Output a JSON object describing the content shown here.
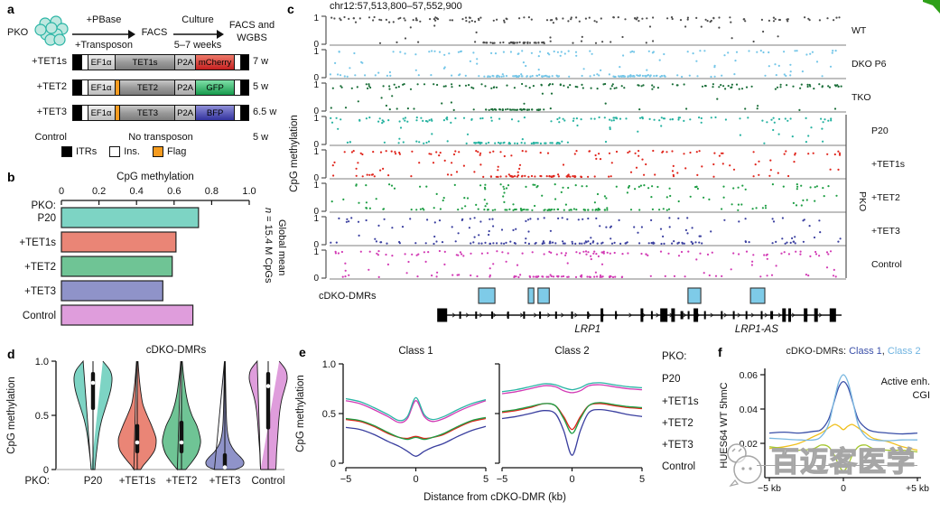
{
  "panels": {
    "a": "a",
    "b": "b",
    "c": "c",
    "d": "d",
    "e": "e",
    "f": "f"
  },
  "corner_mark_color": "#2ea018",
  "watermark": {
    "text": "百迈客医学"
  },
  "panel_a": {
    "flow": {
      "pko": "PKO",
      "arrow1_top": "+PBase",
      "arrow1_bottom": "+Transposon",
      "facs": "FACS",
      "arrow2_top": "Culture",
      "arrow2_bottom": "5–7 weeks",
      "result_line1": "FACS and",
      "result_line2": "WGBS"
    },
    "cell_color": "#bfe8e0",
    "cell_stroke": "#2ab5a5",
    "constructs": [
      {
        "name": "+TET1s",
        "promoter": "EF1α",
        "flag": false,
        "gene": "TET1s",
        "p2a": "P2A",
        "reporter": "mCherry",
        "reporter_color": "#c42020",
        "reporter_light": "#ef7a6a",
        "weeks": "7 w"
      },
      {
        "name": "+TET2",
        "promoter": "EF1α",
        "flag": true,
        "gene": "TET2",
        "p2a": "P2A",
        "reporter": "GFP",
        "reporter_color": "#169a4c",
        "reporter_light": "#7fe0a8",
        "weeks": "5 w"
      },
      {
        "name": "+TET3",
        "promoter": "EF1α",
        "flag": true,
        "gene": "TET3",
        "p2a": "P2A",
        "reporter": "BFP",
        "reporter_color": "#33339e",
        "reporter_light": "#8f8fd8",
        "weeks": "6.5 w"
      }
    ],
    "control": {
      "name": "Control",
      "text": "No transposon",
      "weeks": "5 w"
    },
    "legend": [
      {
        "label": "ITRs",
        "color": "#000000"
      },
      {
        "label": "Ins.",
        "color": "#ffffff"
      },
      {
        "label": "Flag",
        "color": "#f59b1f"
      }
    ],
    "flag_color": "#f59b1f"
  },
  "chart_data": [
    {
      "id": "b",
      "type": "bar",
      "title": "CpG methylation",
      "row_prefix": "PKO:",
      "categories": [
        "P20",
        "+TET1s",
        "+TET2",
        "+TET3",
        "Control"
      ],
      "values": [
        0.73,
        0.61,
        0.59,
        0.54,
        0.7
      ],
      "colors": [
        "#7dd4c4",
        "#ea8576",
        "#6fc495",
        "#8f93c9",
        "#df9ddc"
      ],
      "xticks": [
        "0",
        "0.2",
        "0.4",
        "0.6",
        "0.8",
        "1.0"
      ],
      "xlim": [
        0,
        1
      ],
      "right_label_line1": "Global mean",
      "right_label_line2_italic": "n",
      "right_label_line2_rest": " = 15.4 M CpGs"
    },
    {
      "id": "c",
      "type": "scatter-tracks",
      "title": "chr12:57,513,800–57,552,900",
      "ylabel": "CpG methylation",
      "ytick_top": "1",
      "ytick_bottom": "0",
      "group_label": "PKO",
      "tracks": [
        {
          "label": "WT",
          "color": "#4d4d4d",
          "group": false,
          "high": 0.8,
          "low": 0.1,
          "smears": [
            [
              0.3,
              0.42
            ]
          ]
        },
        {
          "label": "DKO P6",
          "color": "#74c6e8",
          "group": false,
          "high": 0.52,
          "low": 0.33,
          "smears": [
            [
              0.28,
              0.45
            ],
            [
              0.55,
              0.66
            ]
          ]
        },
        {
          "label": "TKO",
          "color": "#1a6e38",
          "group": false,
          "high": 0.78,
          "low": 0.12,
          "smears": [
            [
              0.3,
              0.42
            ]
          ]
        },
        {
          "label": "P20",
          "color": "#25b2a0",
          "group": true,
          "high": 0.7,
          "low": 0.2,
          "smears": [
            [
              0.28,
              0.45
            ]
          ]
        },
        {
          "label": "+TET1s",
          "color": "#e0251c",
          "group": true,
          "high": 0.45,
          "low": 0.28,
          "smears": [
            [
              0.3,
              0.52
            ]
          ]
        },
        {
          "label": "+TET2",
          "color": "#1e9e44",
          "group": true,
          "high": 0.45,
          "low": 0.28,
          "smears": [
            [
              0.3,
              0.55
            ]
          ]
        },
        {
          "label": "+TET3",
          "color": "#3a3f9f",
          "group": true,
          "high": 0.3,
          "low": 0.4,
          "smears": [
            [
              0.3,
              0.72
            ]
          ]
        },
        {
          "label": "Control",
          "color": "#d23ab4",
          "group": true,
          "high": 0.68,
          "low": 0.2,
          "smears": [
            [
              0.35,
              0.58
            ]
          ]
        }
      ],
      "dmr_label": "cDKO-DMRs",
      "dmr_text_color": "#54b8e0",
      "dmr_fill": "#7ecbe8",
      "dmr_boxes": [
        [
          0.291,
          0.323
        ],
        [
          0.388,
          0.399
        ],
        [
          0.407,
          0.429
        ],
        [
          0.7,
          0.725
        ],
        [
          0.822,
          0.85
        ]
      ],
      "gene_span": [
        0.22,
        1.0
      ],
      "gene_labels": [
        {
          "name": "LRP1",
          "fx": 0.504
        },
        {
          "name": "LRP1-AS",
          "fx": 0.834
        }
      ],
      "exons": [
        {
          "x": 0,
          "w": 11,
          "h": 15
        },
        {
          "x": 0.045,
          "w": 2,
          "h": 8
        },
        {
          "x": 0.085,
          "w": 2,
          "h": 8
        },
        {
          "x": 0.125,
          "w": 2,
          "h": 8
        },
        {
          "x": 0.165,
          "w": 2,
          "h": 8
        },
        {
          "x": 0.205,
          "w": 2,
          "h": 8
        },
        {
          "x": 0.245,
          "w": 2,
          "h": 8
        },
        {
          "x": 0.285,
          "w": 2,
          "h": 8
        },
        {
          "x": 0.325,
          "w": 2,
          "h": 8
        },
        {
          "x": 0.365,
          "w": 2,
          "h": 8
        },
        {
          "x": 0.4,
          "w": 3,
          "h": 15
        },
        {
          "x": 0.435,
          "w": 2,
          "h": 9
        },
        {
          "x": 0.5,
          "w": 3,
          "h": 15
        },
        {
          "x": 0.525,
          "w": 2,
          "h": 9
        },
        {
          "x": 0.555,
          "w": 8,
          "h": 15
        },
        {
          "x": 0.578,
          "w": 4,
          "h": 15
        },
        {
          "x": 0.6,
          "w": 3,
          "h": 9
        },
        {
          "x": 0.617,
          "w": 2,
          "h": 9
        },
        {
          "x": 0.635,
          "w": 5,
          "h": 15
        },
        {
          "x": 0.658,
          "w": 2,
          "h": 9
        },
        {
          "x": 0.7,
          "w": 2,
          "h": 9
        },
        {
          "x": 0.73,
          "w": 2,
          "h": 9
        },
        {
          "x": 0.762,
          "w": 2,
          "h": 9
        },
        {
          "x": 0.8,
          "w": 2,
          "h": 9
        },
        {
          "x": 0.825,
          "w": 3,
          "h": 9
        },
        {
          "x": 0.856,
          "w": 4,
          "h": 15
        },
        {
          "x": 0.87,
          "w": 3,
          "h": 15
        },
        {
          "x": 0.91,
          "w": 4,
          "h": 15
        },
        {
          "x": 0.936,
          "w": 4,
          "h": 15
        },
        {
          "x": 0.978,
          "w": 7,
          "h": 15
        }
      ]
    },
    {
      "id": "d",
      "type": "violin",
      "title": "cDKO-DMRs",
      "ylabel": "CpG methylation",
      "yticks": [
        "1.0",
        "0.5",
        "0"
      ],
      "x_prefix": "PKO:",
      "categories": [
        "P20",
        "+TET1s",
        "+TET2",
        "+TET3",
        "Control"
      ],
      "colors": [
        "#7dd4c4",
        "#ea8576",
        "#6fc495",
        "#8f93c9",
        "#df9ddc"
      ],
      "violins": [
        {
          "median": 0.8,
          "q1": 0.55,
          "q3": 0.9,
          "profile": [
            [
              1.0,
              0.52
            ],
            [
              0.92,
              0.88
            ],
            [
              0.85,
              1.0
            ],
            [
              0.75,
              0.95
            ],
            [
              0.65,
              0.8
            ],
            [
              0.55,
              0.62
            ],
            [
              0.45,
              0.45
            ],
            [
              0.35,
              0.33
            ],
            [
              0.25,
              0.25
            ],
            [
              0.15,
              0.18
            ],
            [
              0.05,
              0.12
            ],
            [
              0.0,
              0.1
            ]
          ]
        },
        {
          "median": 0.25,
          "q1": 0.15,
          "q3": 0.42,
          "profile": [
            [
              1.0,
              0.04
            ],
            [
              0.9,
              0.08
            ],
            [
              0.8,
              0.13
            ],
            [
              0.7,
              0.2
            ],
            [
              0.6,
              0.3
            ],
            [
              0.5,
              0.52
            ],
            [
              0.42,
              0.72
            ],
            [
              0.33,
              0.92
            ],
            [
              0.27,
              1.0
            ],
            [
              0.18,
              0.92
            ],
            [
              0.1,
              0.62
            ],
            [
              0.04,
              0.33
            ],
            [
              0.0,
              0.18
            ]
          ]
        },
        {
          "median": 0.25,
          "q1": 0.15,
          "q3": 0.45,
          "profile": [
            [
              1.0,
              0.04
            ],
            [
              0.9,
              0.09
            ],
            [
              0.8,
              0.16
            ],
            [
              0.7,
              0.24
            ],
            [
              0.6,
              0.36
            ],
            [
              0.5,
              0.55
            ],
            [
              0.4,
              0.82
            ],
            [
              0.3,
              0.98
            ],
            [
              0.24,
              1.0
            ],
            [
              0.15,
              0.85
            ],
            [
              0.07,
              0.55
            ],
            [
              0.0,
              0.22
            ]
          ]
        },
        {
          "median": 0.02,
          "q1": 0.005,
          "q3": 0.15,
          "profile": [
            [
              1.0,
              0.02
            ],
            [
              0.85,
              0.035
            ],
            [
              0.7,
              0.05
            ],
            [
              0.55,
              0.07
            ],
            [
              0.42,
              0.1
            ],
            [
              0.32,
              0.16
            ],
            [
              0.24,
              0.28
            ],
            [
              0.17,
              0.52
            ],
            [
              0.11,
              0.85
            ],
            [
              0.07,
              1.0
            ],
            [
              0.03,
              0.92
            ],
            [
              0.0,
              0.55
            ]
          ]
        },
        {
          "median": 0.77,
          "q1": 0.37,
          "q3": 0.9,
          "profile": [
            [
              1.0,
              0.58
            ],
            [
              0.92,
              0.92
            ],
            [
              0.84,
              1.0
            ],
            [
              0.75,
              0.88
            ],
            [
              0.65,
              0.72
            ],
            [
              0.55,
              0.62
            ],
            [
              0.45,
              0.56
            ],
            [
              0.35,
              0.52
            ],
            [
              0.25,
              0.48
            ],
            [
              0.15,
              0.44
            ],
            [
              0.05,
              0.42
            ],
            [
              0.0,
              0.4
            ]
          ]
        }
      ]
    },
    {
      "id": "e",
      "type": "line",
      "subplot_titles": [
        "Class 1",
        "Class 2"
      ],
      "ylabel": "CpG methylation",
      "yticks": [
        "1.0",
        "0.5",
        "0"
      ],
      "ylim": [
        0,
        1
      ],
      "xlabel": "Distance from cDKO-DMR (kb)",
      "xtick_labels": [
        "−5",
        "0",
        "5"
      ],
      "legend_title": "PKO:",
      "x": [
        -5,
        -4,
        -3,
        -2,
        -1.2,
        -0.6,
        0,
        0.6,
        1.2,
        2,
        3,
        4,
        5
      ],
      "series": [
        {
          "name": "Control",
          "color": "#d23ab4",
          "class1": [
            0.63,
            0.6,
            0.54,
            0.47,
            0.41,
            0.45,
            0.63,
            0.47,
            0.42,
            0.45,
            0.52,
            0.58,
            0.63
          ],
          "class2": [
            0.7,
            0.72,
            0.75,
            0.78,
            0.77,
            0.73,
            0.71,
            0.73,
            0.78,
            0.79,
            0.77,
            0.75,
            0.74
          ]
        },
        {
          "name": "P20",
          "color": "#2ab5a5",
          "class1": [
            0.65,
            0.62,
            0.56,
            0.49,
            0.43,
            0.47,
            0.66,
            0.49,
            0.44,
            0.47,
            0.54,
            0.6,
            0.64
          ],
          "class2": [
            0.72,
            0.74,
            0.77,
            0.8,
            0.79,
            0.76,
            0.74,
            0.76,
            0.8,
            0.81,
            0.79,
            0.77,
            0.76
          ]
        },
        {
          "name": "+TET1s",
          "color": "#e0251c",
          "class1": [
            0.44,
            0.42,
            0.37,
            0.3,
            0.26,
            0.25,
            0.27,
            0.25,
            0.26,
            0.29,
            0.36,
            0.42,
            0.45
          ],
          "class2": [
            0.51,
            0.53,
            0.56,
            0.6,
            0.58,
            0.47,
            0.34,
            0.47,
            0.58,
            0.6,
            0.58,
            0.56,
            0.55
          ]
        },
        {
          "name": "+TET2",
          "color": "#1e9e44",
          "class1": [
            0.45,
            0.43,
            0.38,
            0.31,
            0.26,
            0.24,
            0.26,
            0.24,
            0.26,
            0.3,
            0.37,
            0.43,
            0.46
          ],
          "class2": [
            0.52,
            0.54,
            0.57,
            0.6,
            0.58,
            0.45,
            0.3,
            0.45,
            0.58,
            0.61,
            0.59,
            0.57,
            0.56
          ]
        },
        {
          "name": "+TET3",
          "color": "#3a3f9f",
          "class1": [
            0.36,
            0.34,
            0.29,
            0.22,
            0.17,
            0.12,
            0.07,
            0.12,
            0.16,
            0.2,
            0.27,
            0.33,
            0.37
          ],
          "class2": [
            0.45,
            0.47,
            0.5,
            0.53,
            0.5,
            0.33,
            0.08,
            0.33,
            0.51,
            0.54,
            0.52,
            0.49,
            0.47
          ]
        }
      ],
      "legend_order": [
        "P20",
        "+TET1s",
        "+TET2",
        "+TET3",
        "Control"
      ]
    },
    {
      "id": "f",
      "type": "line",
      "title_parts": [
        {
          "text": "cDKO-DMRs: ",
          "color": "#222222"
        },
        {
          "text": "Class 1",
          "color": "#3a4fa8"
        },
        {
          "text": ", ",
          "color": "#222222"
        },
        {
          "text": "Class 2",
          "color": "#6fb3e0"
        }
      ],
      "ylabel": "HUES64 WT 5hmC",
      "yticks": [
        "0.06",
        "0.04",
        "0.02"
      ],
      "ytick_vals": [
        0.06,
        0.04,
        0.02
      ],
      "ylim": [
        0,
        0.065
      ],
      "xtick_labels": [
        "−5 kb",
        "0",
        "+5 kb"
      ],
      "x": [
        -5,
        -4,
        -3,
        -2,
        -1.5,
        -1,
        -0.6,
        -0.3,
        0,
        0.3,
        0.6,
        1,
        1.5,
        2,
        3,
        4,
        5
      ],
      "series": [
        {
          "name": "Active enh.",
          "color": "#f0c01e",
          "legend": true,
          "values": [
            0.017,
            0.018,
            0.02,
            0.024,
            0.026,
            0.029,
            0.031,
            0.03,
            0.028,
            0.03,
            0.031,
            0.029,
            0.026,
            0.023,
            0.021,
            0.018,
            0.016
          ]
        },
        {
          "name": "CGI",
          "color": "#a4c62e",
          "legend": true,
          "values": [
            0.018,
            0.017,
            0.016,
            0.017,
            0.019,
            0.018,
            0.013,
            0.007,
            0.004,
            0.007,
            0.013,
            0.018,
            0.019,
            0.017,
            0.016,
            0.016,
            0.015
          ]
        },
        {
          "name": "Class 1",
          "color": "#3a4fa8",
          "legend": false,
          "values": [
            0.026,
            0.0265,
            0.026,
            0.027,
            0.028,
            0.034,
            0.045,
            0.053,
            0.056,
            0.053,
            0.045,
            0.034,
            0.029,
            0.027,
            0.026,
            0.0255,
            0.026
          ]
        },
        {
          "name": "Class 2",
          "color": "#7ab8e0",
          "legend": false,
          "values": [
            0.023,
            0.0225,
            0.022,
            0.022,
            0.024,
            0.031,
            0.046,
            0.056,
            0.06,
            0.056,
            0.046,
            0.031,
            0.024,
            0.022,
            0.0215,
            0.022,
            0.022
          ]
        }
      ]
    }
  ]
}
